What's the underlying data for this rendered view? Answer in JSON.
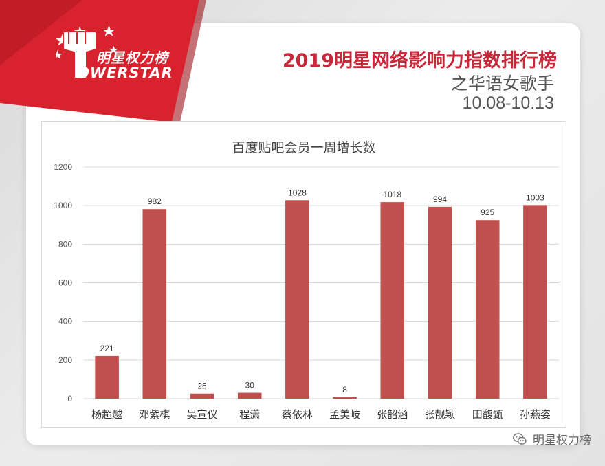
{
  "header": {
    "brand_cn": "明星权力榜",
    "brand_en": "OWERSTAR",
    "title": "2019明星网络影响力指数排行榜",
    "subtitle": "之华语女歌手",
    "date_range": "10.08-10.13"
  },
  "watermark": {
    "label": "明星权力榜",
    "icon": "wechat-icon"
  },
  "colors": {
    "ribbon": "#d8232f",
    "title": "#c9283b",
    "bar": "#c0504d"
  },
  "chart_data": {
    "type": "bar",
    "title": "百度贴吧会员一周增长数",
    "xlabel": "",
    "ylabel": "",
    "categories": [
      "杨超越",
      "邓紫棋",
      "吴宣仪",
      "程潇",
      "蔡依林",
      "孟美岐",
      "张韶涵",
      "张靓颖",
      "田馥甄",
      "孙燕姿"
    ],
    "values": [
      221,
      982,
      26,
      30,
      1028,
      8,
      1018,
      994,
      925,
      1003
    ],
    "ylim": [
      0,
      1200
    ],
    "yticks": [
      0,
      200,
      400,
      600,
      800,
      1000,
      1200
    ],
    "grid": true,
    "legend": "none"
  }
}
